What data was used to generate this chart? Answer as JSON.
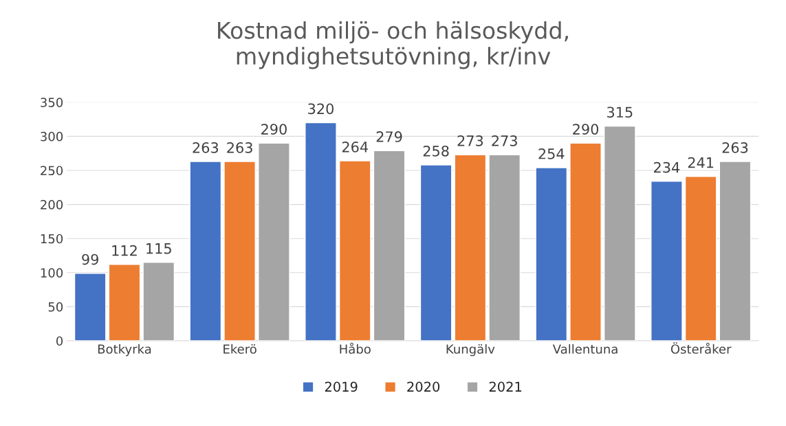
{
  "chart_data": {
    "type": "bar",
    "title": "Kostnad miljö- och hälsoskydd,\nmyndighetsutövning, kr/inv",
    "categories": [
      "Botkyrka",
      "Ekerö",
      "Håbo",
      "Kungälv",
      "Vallentuna",
      "Österåker"
    ],
    "series": [
      {
        "name": "2019",
        "color": "#4472c4",
        "values": [
          99,
          263,
          320,
          258,
          254,
          234
        ]
      },
      {
        "name": "2020",
        "color": "#ed7d31",
        "values": [
          112,
          263,
          264,
          273,
          290,
          241
        ]
      },
      {
        "name": "2021",
        "color": "#a5a5a5",
        "values": [
          115,
          290,
          279,
          273,
          315,
          263
        ]
      }
    ],
    "ylim": [
      0,
      350
    ],
    "yticks": [
      0,
      50,
      100,
      150,
      200,
      250,
      300,
      350
    ],
    "grid": "y",
    "legend": "bottom",
    "data_labels": true
  }
}
